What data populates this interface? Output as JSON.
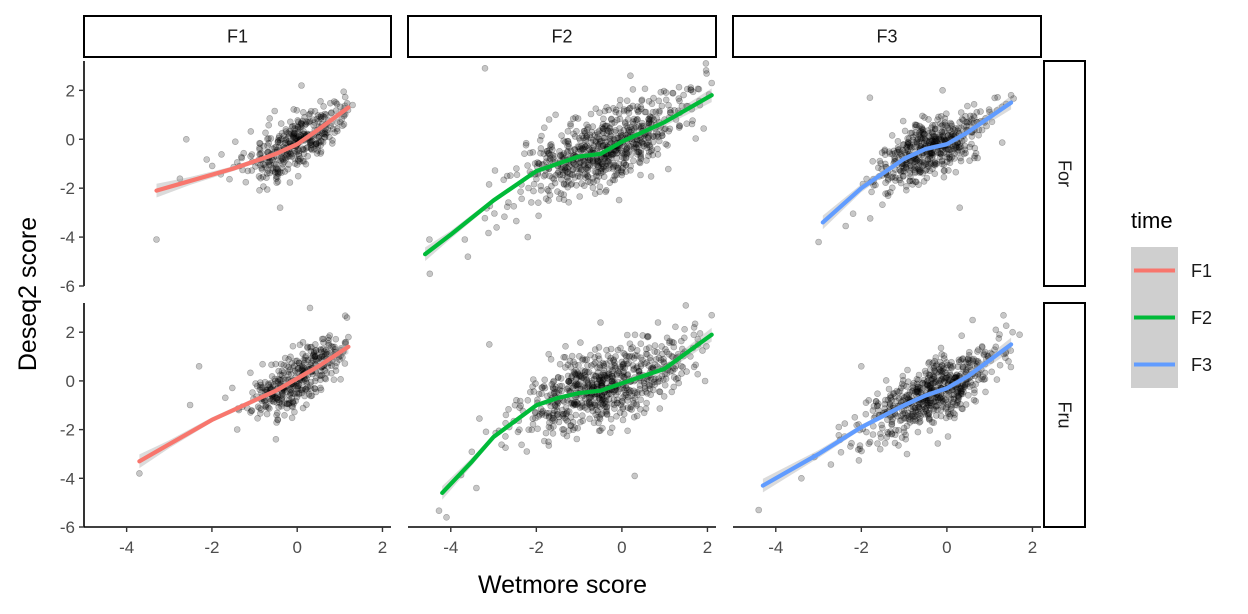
{
  "chart_data": {
    "type": "scatter",
    "facet_columns": [
      "F1",
      "F2",
      "F3"
    ],
    "facet_rows": [
      "For",
      "Fru"
    ],
    "xlabel": "Wetmore score",
    "ylabel": "Deseq2 score",
    "xlim": [
      -5,
      2.2
    ],
    "ylim": [
      -6,
      3.2
    ],
    "x_ticks": [
      -4,
      -2,
      0,
      2
    ],
    "y_ticks": [
      -6,
      -4,
      -2,
      0,
      2
    ],
    "grid": false,
    "point_color": "#000000",
    "point_opacity": 0.22,
    "legend": {
      "title": "time",
      "position": "right",
      "entries": [
        {
          "name": "F1",
          "color": "#F8766D"
        },
        {
          "name": "F2",
          "color": "#00BA38"
        },
        {
          "name": "F3",
          "color": "#619CFF"
        }
      ]
    },
    "panels": [
      {
        "row": "For",
        "col": "F1",
        "series": "F1",
        "trend": {
          "x": [
            -3.3,
            -2.5,
            -1.5,
            -0.5,
            0,
            0.5,
            1.2
          ],
          "y": [
            -2.1,
            -1.7,
            -1.2,
            -0.6,
            -0.2,
            0.4,
            1.3
          ]
        },
        "cloud": {
          "x_range": [
            -3.0,
            1.2
          ],
          "x_center": 0.0,
          "x_spread": 0.6,
          "y_spread": 0.55,
          "n": 380
        },
        "points": [
          {
            "x": -3.3,
            "y": -4.1
          },
          {
            "x": 0.1,
            "y": 2.2
          },
          {
            "x": -2.6,
            "y": 0.0
          },
          {
            "x": -0.4,
            "y": -2.8
          },
          {
            "x": 1.3,
            "y": 1.4
          }
        ]
      },
      {
        "row": "For",
        "col": "F2",
        "series": "F2",
        "trend": {
          "x": [
            -4.6,
            -4.0,
            -3.0,
            -2.0,
            -1.0,
            -0.5,
            0,
            1.0,
            2.1
          ],
          "y": [
            -4.7,
            -3.9,
            -2.5,
            -1.3,
            -0.7,
            -0.6,
            -0.1,
            0.7,
            1.8
          ]
        },
        "cloud": {
          "x_range": [
            -4.6,
            2.1
          ],
          "x_center": -0.4,
          "x_spread": 1.0,
          "y_spread": 0.75,
          "n": 700
        },
        "points": [
          {
            "x": -3.2,
            "y": 2.9
          },
          {
            "x": -4.5,
            "y": -4.1
          },
          {
            "x": -3.6,
            "y": -4.8
          },
          {
            "x": 0.2,
            "y": 2.6
          },
          {
            "x": 2.1,
            "y": 2.3
          },
          {
            "x": -2.2,
            "y": -4.0
          }
        ]
      },
      {
        "row": "For",
        "col": "F3",
        "series": "F3",
        "trend": {
          "x": [
            -2.9,
            -2.0,
            -1.0,
            -0.5,
            0,
            0.5,
            1.5
          ],
          "y": [
            -3.4,
            -2.0,
            -0.8,
            -0.4,
            -0.2,
            0.3,
            1.5
          ]
        },
        "cloud": {
          "x_range": [
            -3.0,
            1.6
          ],
          "x_center": -0.4,
          "x_spread": 0.65,
          "y_spread": 0.6,
          "n": 500
        },
        "points": [
          {
            "x": -3.0,
            "y": -4.2
          },
          {
            "x": -0.1,
            "y": 2.0
          },
          {
            "x": -1.8,
            "y": 1.7
          },
          {
            "x": 1.5,
            "y": 1.8
          },
          {
            "x": 0.3,
            "y": -2.8
          }
        ]
      },
      {
        "row": "Fru",
        "col": "F1",
        "series": "F1",
        "trend": {
          "x": [
            -3.7,
            -3.0,
            -2.0,
            -1.0,
            -0.5,
            0,
            0.5,
            1.2
          ],
          "y": [
            -3.3,
            -2.6,
            -1.6,
            -0.8,
            -0.4,
            0.1,
            0.6,
            1.4
          ]
        },
        "cloud": {
          "x_range": [
            -3.7,
            1.2
          ],
          "x_center": 0.0,
          "x_spread": 0.6,
          "y_spread": 0.55,
          "n": 380
        },
        "points": [
          {
            "x": -3.7,
            "y": -3.8
          },
          {
            "x": 0.3,
            "y": 3.0
          },
          {
            "x": -2.3,
            "y": 0.6
          },
          {
            "x": -0.5,
            "y": -2.4
          },
          {
            "x": 1.2,
            "y": 1.8
          }
        ]
      },
      {
        "row": "Fru",
        "col": "F2",
        "series": "F2",
        "trend": {
          "x": [
            -4.2,
            -3.5,
            -3.0,
            -2.0,
            -1.5,
            -1.0,
            -0.5,
            0,
            1.0,
            2.1
          ],
          "y": [
            -4.6,
            -3.3,
            -2.3,
            -1.0,
            -0.7,
            -0.5,
            -0.4,
            -0.1,
            0.5,
            1.9
          ]
        },
        "cloud": {
          "x_range": [
            -4.4,
            2.1
          ],
          "x_center": -0.4,
          "x_spread": 1.0,
          "y_spread": 0.75,
          "n": 700
        },
        "points": [
          {
            "x": -4.1,
            "y": -5.6
          },
          {
            "x": -0.5,
            "y": 2.4
          },
          {
            "x": -3.4,
            "y": -4.4
          },
          {
            "x": 2.1,
            "y": 2.7
          },
          {
            "x": 0.3,
            "y": -3.9
          },
          {
            "x": -3.1,
            "y": 1.5
          }
        ]
      },
      {
        "row": "Fru",
        "col": "F3",
        "series": "F3",
        "trend": {
          "x": [
            -4.3,
            -3.0,
            -2.0,
            -1.0,
            -0.5,
            0,
            0.5,
            1.5
          ],
          "y": [
            -4.3,
            -3.0,
            -1.9,
            -1.0,
            -0.6,
            -0.3,
            0.2,
            1.5
          ]
        },
        "cloud": {
          "x_range": [
            -4.3,
            1.6
          ],
          "x_center": -0.3,
          "x_spread": 0.8,
          "y_spread": 0.6,
          "n": 600
        },
        "points": [
          {
            "x": -4.4,
            "y": -5.3
          },
          {
            "x": 0.6,
            "y": 2.5
          },
          {
            "x": -3.4,
            "y": -4.0
          },
          {
            "x": 1.7,
            "y": 1.9
          },
          {
            "x": -2.0,
            "y": 0.6
          }
        ]
      }
    ]
  }
}
